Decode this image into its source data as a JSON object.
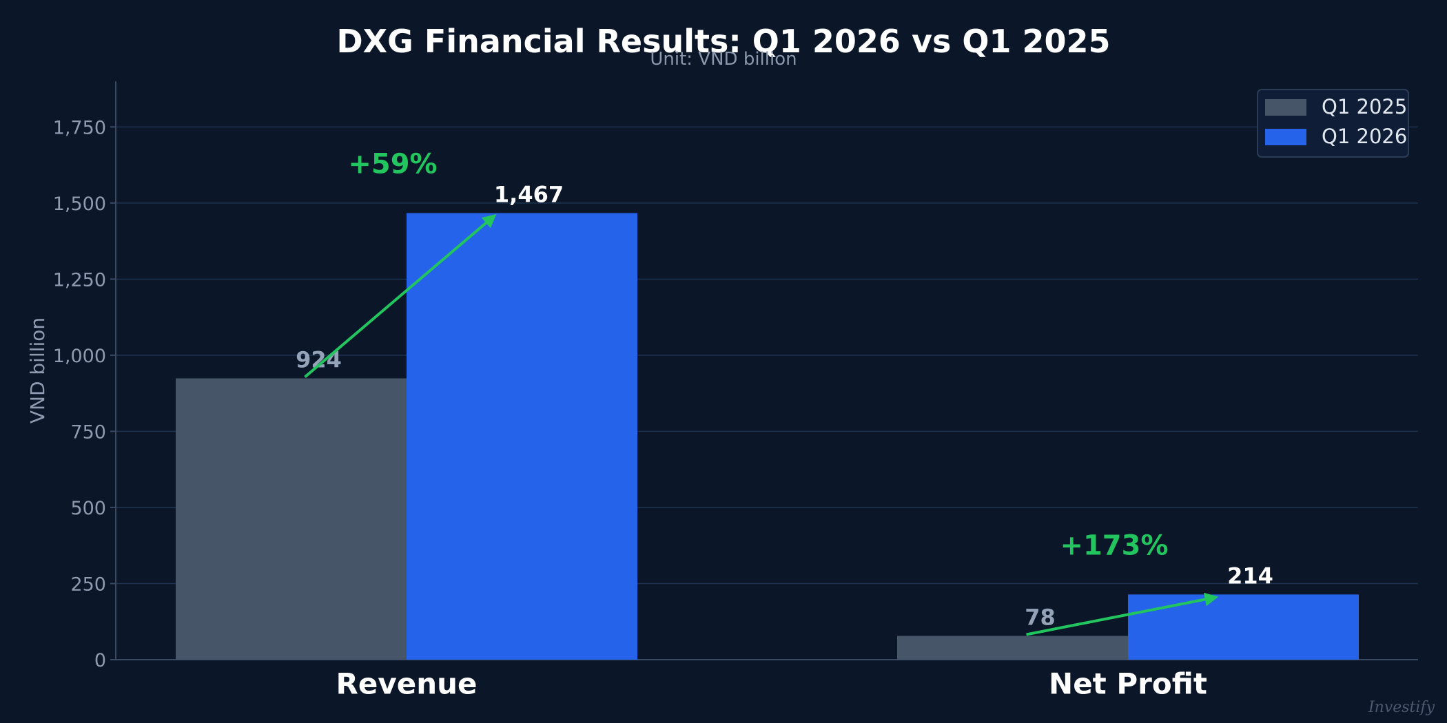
{
  "chart_data": {
    "type": "bar",
    "title": "DXG Financial Results: Q1 2026 vs Q1 2025",
    "subtitle": "Unit: VND billion",
    "ylabel": "VND billion",
    "xlabel": "",
    "categories": [
      "Revenue",
      "Net Profit"
    ],
    "series": [
      {
        "name": "Q1 2025",
        "values": [
          924,
          78
        ],
        "labels": [
          "924",
          "78"
        ],
        "color": "#475569"
      },
      {
        "name": "Q1 2026",
        "values": [
          1467,
          214
        ],
        "labels": [
          "1,467",
          "214"
        ],
        "color": "#2563eb"
      }
    ],
    "changes": [
      "+59%",
      "+173%"
    ],
    "ylim": [
      0,
      1900
    ],
    "yticks": [
      0,
      250,
      500,
      750,
      1000,
      1250,
      1500,
      1750
    ],
    "ytick_labels": [
      "0",
      "250",
      "500",
      "750",
      "1,000",
      "1,250",
      "1,500",
      "1,750"
    ],
    "grid": true,
    "legend_position": "top-right"
  },
  "watermark": "Investify",
  "colors": {
    "background": "#0b1628",
    "title": "#ffffff",
    "subtitle": "#8a98ad",
    "tick_text": "#8f9bb0",
    "grid": "#1f3350",
    "axis": "#3a4a63",
    "category_text": "#ffffff",
    "label_prev": "#94a3b8",
    "label_curr": "#ffffff",
    "arrow": "#22c55e",
    "change_text": "#22c55e",
    "legend_bg": "#0f1e36",
    "legend_border": "#2b3c57",
    "legend_text": "#e2e8f0",
    "watermark": "#4b5a70"
  }
}
